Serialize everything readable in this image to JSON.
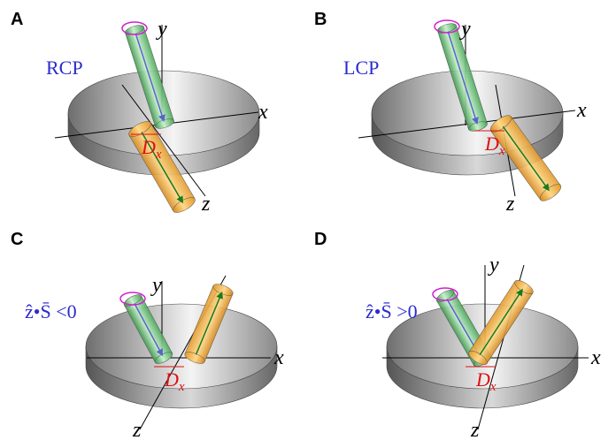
{
  "panels": [
    {
      "label": "A",
      "annotation": "RCP",
      "axes": {
        "x": "x",
        "y": "y",
        "z": "z"
      },
      "shift": {
        "main": "D",
        "sub": "x"
      }
    },
    {
      "label": "B",
      "annotation": "LCP",
      "axes": {
        "x": "x",
        "y": "y",
        "z": "z"
      },
      "shift": {
        "main": "D",
        "sub": "x"
      }
    },
    {
      "label": "C",
      "annotation": "ẑ•S̄ <0",
      "axes": {
        "x": "x",
        "y": "y",
        "z": "z"
      },
      "shift": {
        "main": "D",
        "sub": "x"
      }
    },
    {
      "label": "D",
      "annotation": "ẑ•S̄ >0",
      "axes": {
        "x": "x",
        "y": "y",
        "z": "z"
      },
      "shift": {
        "main": "D",
        "sub": "x"
      }
    }
  ]
}
